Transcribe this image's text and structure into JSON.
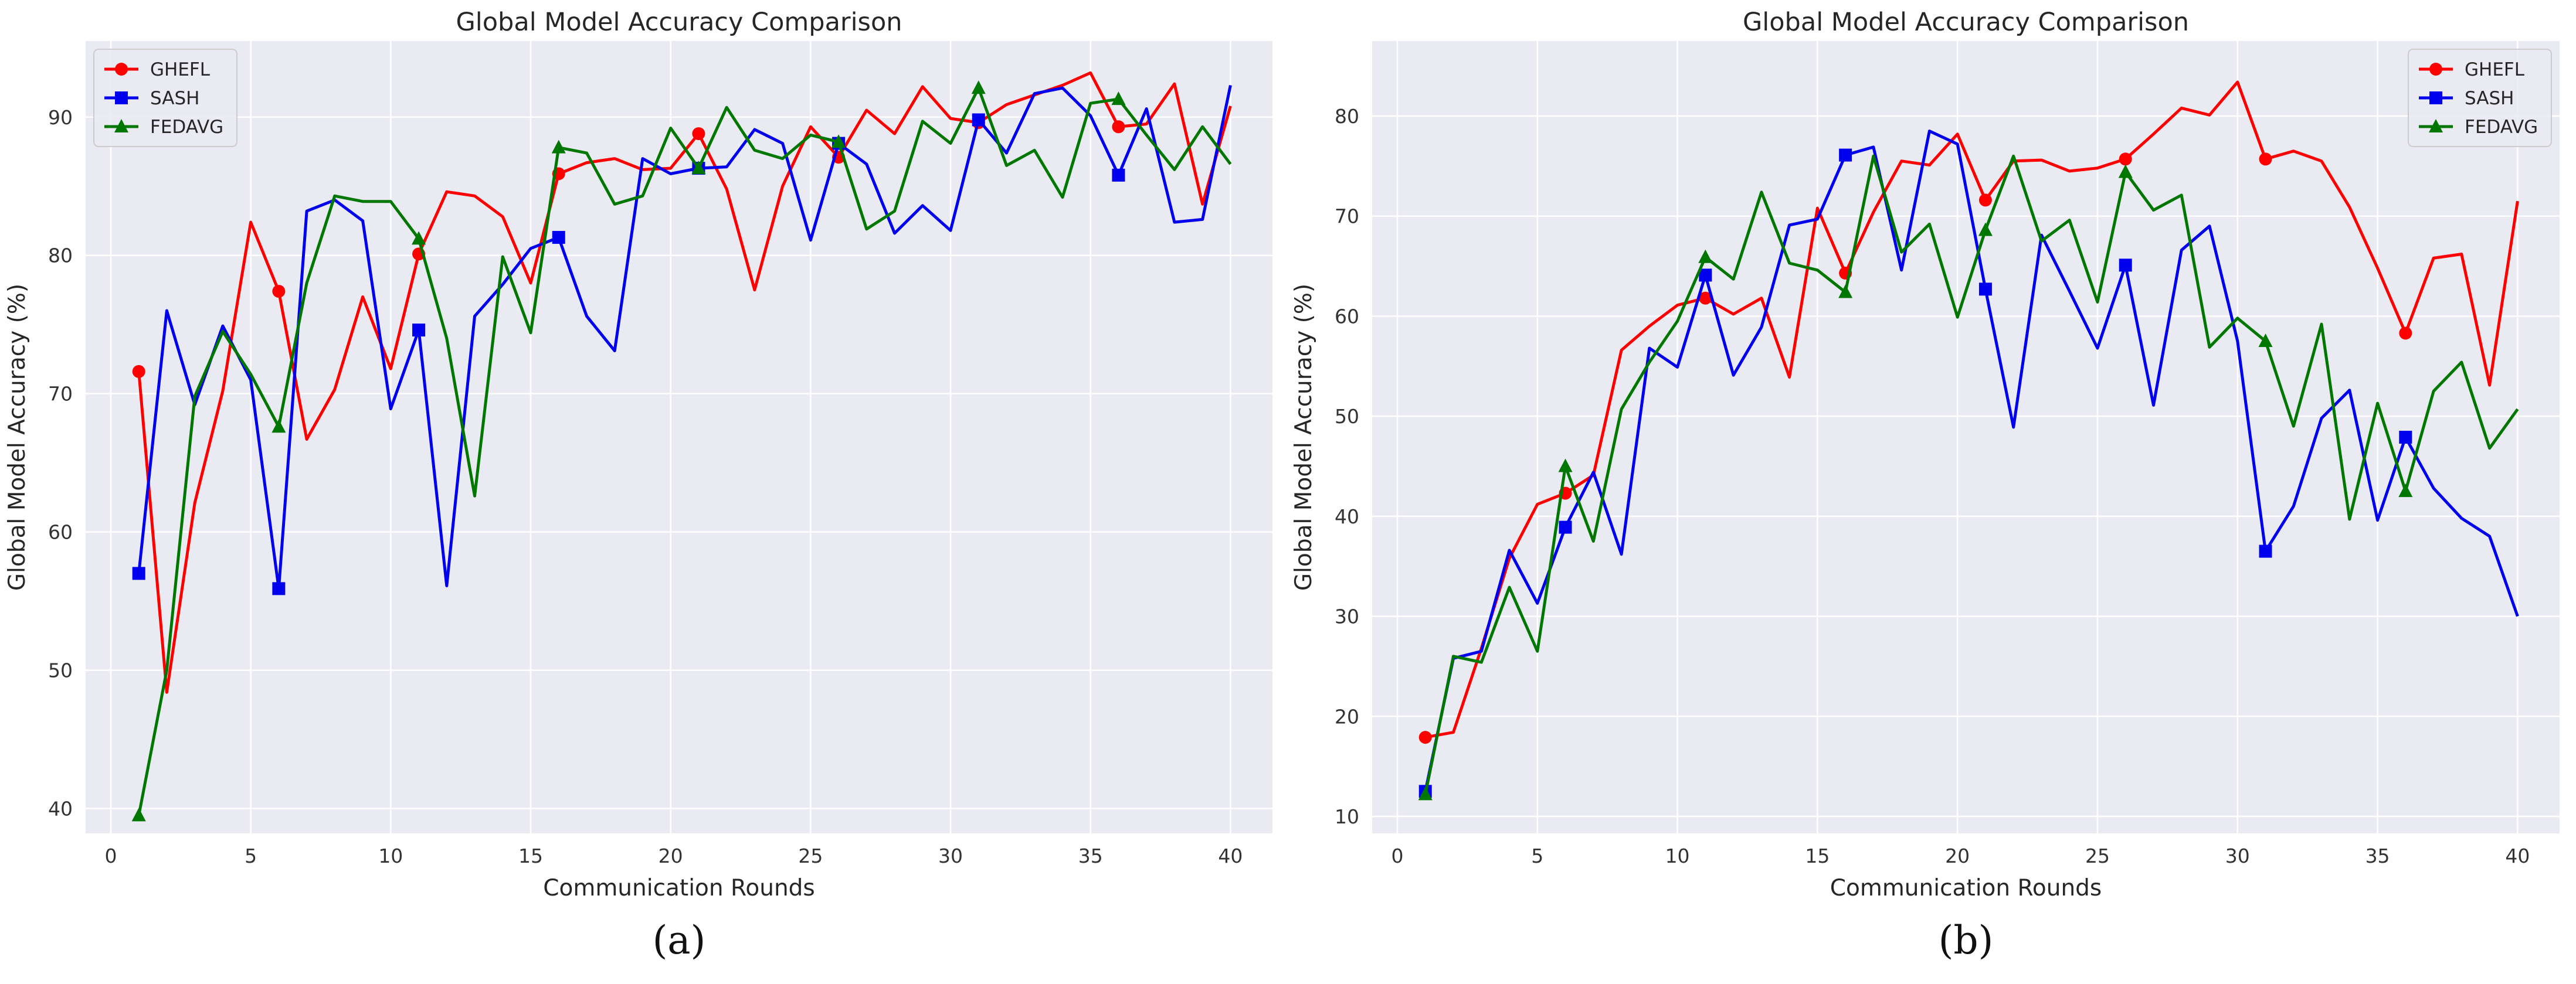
{
  "chart_data": [
    {
      "panel_label": "(a)",
      "type": "line",
      "title": "Global Model Accuracy Comparison",
      "xlabel": "Communication Rounds",
      "ylabel": "Global Model Accuracy (%)",
      "xlim": [
        -0.9,
        41.5
      ],
      "ylim": [
        38.2,
        95.5
      ],
      "xticks": [
        0,
        5,
        10,
        15,
        20,
        25,
        30,
        35,
        40
      ],
      "yticks": [
        40,
        50,
        60,
        70,
        80,
        90
      ],
      "grid": true,
      "legend_position": "top-left",
      "x": [
        1,
        2,
        3,
        4,
        5,
        6,
        7,
        8,
        9,
        10,
        11,
        12,
        13,
        14,
        15,
        16,
        17,
        18,
        19,
        20,
        21,
        22,
        23,
        24,
        25,
        26,
        27,
        28,
        29,
        30,
        31,
        32,
        33,
        34,
        35,
        36,
        37,
        38,
        39,
        40
      ],
      "series": [
        {
          "name": "GHEFL",
          "color": "#ff0000",
          "marker": "circle",
          "values": [
            71.6,
            48.4,
            62.1,
            70.2,
            82.4,
            77.4,
            66.7,
            70.3,
            77.0,
            71.8,
            80.1,
            84.6,
            84.3,
            82.8,
            78.0,
            85.9,
            86.7,
            87.0,
            86.2,
            86.3,
            88.8,
            84.8,
            77.5,
            85.0,
            89.3,
            87.1,
            90.5,
            88.8,
            92.2,
            89.9,
            89.6,
            90.9,
            91.6,
            92.3,
            93.2,
            89.3,
            89.5,
            92.4,
            83.7,
            90.8
          ]
        },
        {
          "name": "SASH",
          "color": "#0000ee",
          "marker": "square",
          "values": [
            57.0,
            76.0,
            69.2,
            74.9,
            71.0,
            55.9,
            83.2,
            84.0,
            82.5,
            68.9,
            74.6,
            56.1,
            75.6,
            77.9,
            80.5,
            81.3,
            75.6,
            73.1,
            87.0,
            85.9,
            86.3,
            86.4,
            89.1,
            88.1,
            81.1,
            88.1,
            86.6,
            81.6,
            83.6,
            81.8,
            89.8,
            87.4,
            91.7,
            92.1,
            90.1,
            85.8,
            90.6,
            82.4,
            82.6,
            92.3
          ]
        },
        {
          "name": "FEDAVG",
          "color": "#007700",
          "marker": "triangle",
          "values": [
            39.5,
            50.0,
            69.8,
            74.5,
            71.4,
            67.6,
            78.0,
            84.3,
            83.9,
            83.9,
            81.2,
            74.0,
            62.6,
            79.9,
            74.4,
            87.8,
            87.4,
            83.7,
            84.3,
            89.2,
            86.3,
            90.7,
            87.6,
            87.0,
            88.7,
            88.2,
            81.9,
            83.2,
            89.7,
            88.1,
            92.1,
            86.5,
            87.6,
            84.2,
            91.0,
            91.3,
            88.7,
            86.2,
            89.3,
            86.6
          ]
        }
      ]
    },
    {
      "panel_label": "(b)",
      "type": "line",
      "title": "Global Model Accuracy Comparison",
      "xlabel": "Communication Rounds",
      "ylabel": "Global Model Accuracy (%)",
      "xlim": [
        -0.9,
        41.5
      ],
      "ylim": [
        8.3,
        87.5
      ],
      "xticks": [
        0,
        5,
        10,
        15,
        20,
        25,
        30,
        35,
        40
      ],
      "yticks": [
        10,
        20,
        30,
        40,
        50,
        60,
        70,
        80
      ],
      "grid": true,
      "legend_position": "top-right",
      "x": [
        1,
        2,
        3,
        4,
        5,
        6,
        7,
        8,
        9,
        10,
        11,
        12,
        13,
        14,
        15,
        16,
        17,
        18,
        19,
        20,
        21,
        22,
        23,
        24,
        25,
        26,
        27,
        28,
        29,
        30,
        31,
        32,
        33,
        34,
        35,
        36,
        37,
        38,
        39,
        40
      ],
      "series": [
        {
          "name": "GHEFL",
          "color": "#ff0000",
          "marker": "circle",
          "values": [
            17.9,
            18.4,
            26.8,
            35.8,
            41.2,
            42.3,
            44.1,
            56.6,
            59.0,
            61.1,
            61.8,
            60.2,
            61.8,
            53.9,
            70.8,
            64.3,
            70.4,
            75.5,
            75.1,
            78.2,
            71.6,
            75.5,
            75.6,
            74.5,
            74.8,
            75.7,
            78.2,
            80.8,
            80.1,
            83.4,
            75.7,
            76.5,
            75.5,
            70.9,
            64.8,
            58.3,
            65.8,
            66.2,
            53.1,
            71.5
          ]
        },
        {
          "name": "SASH",
          "color": "#0000ee",
          "marker": "square",
          "values": [
            12.5,
            25.8,
            26.5,
            36.6,
            31.3,
            38.9,
            44.4,
            36.2,
            56.8,
            54.9,
            64.1,
            54.1,
            58.9,
            69.1,
            69.7,
            76.1,
            76.9,
            64.6,
            78.5,
            77.2,
            62.7,
            48.9,
            68.1,
            62.5,
            56.8,
            65.1,
            51.1,
            66.6,
            69.0,
            57.5,
            36.5,
            41.0,
            49.8,
            52.6,
            39.6,
            47.9,
            42.8,
            39.8,
            38.0,
            30.0
          ]
        },
        {
          "name": "FEDAVG",
          "color": "#007700",
          "marker": "triangle",
          "values": [
            12.2,
            26.0,
            25.4,
            32.9,
            26.5,
            45.0,
            37.5,
            50.7,
            55.4,
            59.5,
            65.9,
            63.7,
            72.4,
            65.3,
            64.6,
            62.4,
            76.0,
            66.4,
            69.2,
            59.9,
            68.6,
            76.0,
            67.5,
            69.6,
            61.4,
            74.4,
            70.6,
            72.1,
            56.9,
            59.8,
            57.5,
            49.0,
            59.2,
            39.7,
            51.3,
            42.5,
            52.5,
            55.4,
            46.8,
            50.7
          ]
        }
      ]
    }
  ]
}
